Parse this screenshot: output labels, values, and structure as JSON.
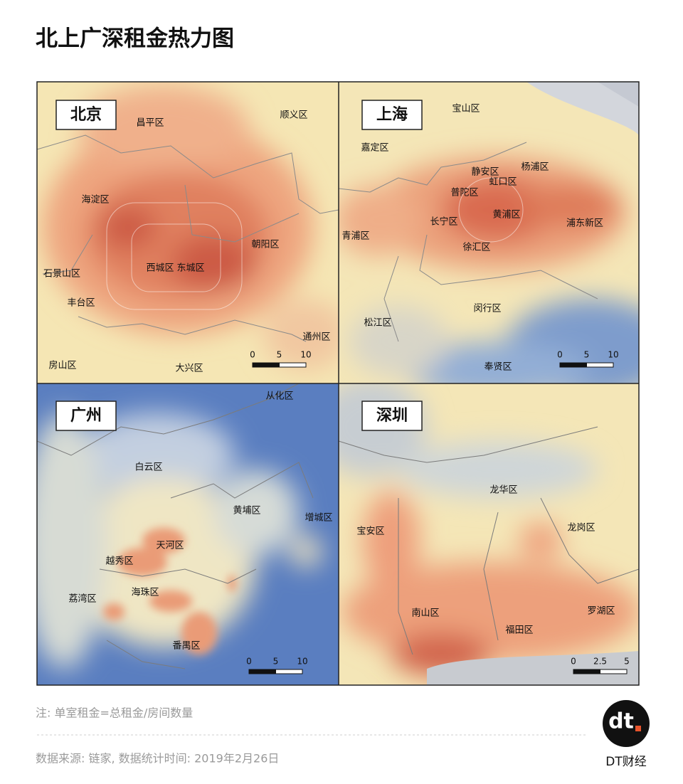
{
  "header": {
    "title": "北上广深租金热力图"
  },
  "maps": [
    {
      "name": "北京",
      "districts": [
        "昌平区",
        "顺义区",
        "海淀区",
        "朝阳区",
        "石景山区",
        "西城区",
        "东城区",
        "丰台区",
        "通州区",
        "房山区",
        "大兴区"
      ],
      "scale": [
        0,
        5,
        10
      ]
    },
    {
      "name": "上海",
      "districts": [
        "宝山区",
        "嘉定区",
        "静安区",
        "杨浦区",
        "虹口区",
        "普陀区",
        "长宁区",
        "黄浦区",
        "浦东新区",
        "青浦区",
        "徐汇区",
        "闵行区",
        "松江区",
        "奉贤区"
      ],
      "scale": [
        0,
        5,
        10
      ]
    },
    {
      "name": "广州",
      "districts": [
        "从化区",
        "白云区",
        "黄埔区",
        "增城区",
        "天河区",
        "越秀区",
        "海珠区",
        "荔湾区",
        "番禺区"
      ],
      "scale": [
        0,
        5,
        10
      ]
    },
    {
      "name": "深圳",
      "districts": [
        "龙华区",
        "宝安区",
        "龙岗区",
        "南山区",
        "罗湖区",
        "福田区"
      ],
      "scale": [
        0,
        2.5,
        5
      ]
    }
  ],
  "footer": {
    "note": "注: 单室租金=总租金/房间数量",
    "source": "数据来源: 链家, 数据统计时间: 2019年2月26日",
    "logo_mark": "dt",
    "logo_text": "DT财经"
  }
}
